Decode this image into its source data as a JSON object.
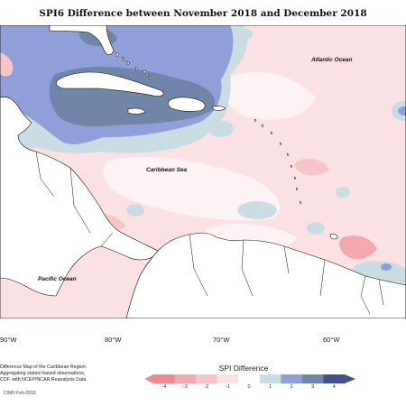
{
  "title": "SPI6 Difference between November 2018 and December 2018",
  "ocean_labels": {
    "atlantic": "Atlantic Ocean",
    "caribbean": "Caribbean Sea",
    "pacific": "Pacific Ocean"
  },
  "longitude_labels": [
    "90°W",
    "80°W",
    "70°W",
    "60°W"
  ],
  "caption": "Difference Map of the Caribbean Region.\nAggregating station based observations,\nCDF, with NCEP/NCAR Reanalysis Data.",
  "copyright": "CIMH Feb-2019",
  "legend": {
    "title": "SPI Difference",
    "ticks": [
      "-4",
      "-3",
      "-2",
      "-1",
      "0",
      "1",
      "2",
      "3",
      "4"
    ],
    "colors": [
      "#f08a90",
      "#f3a8ad",
      "#f7c5c9",
      "#fbe0e4",
      "#ffffff",
      "#c9dde3",
      "#8fa0d8",
      "#6f86a8",
      "#44508e"
    ]
  }
}
